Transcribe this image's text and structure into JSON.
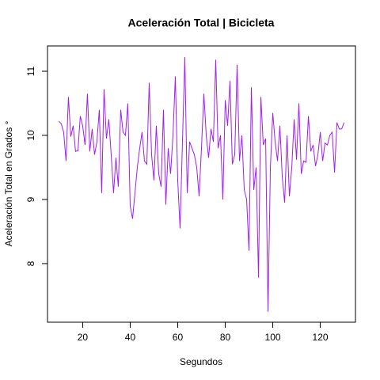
{
  "chart_data": {
    "type": "line",
    "title": "Aceleración Total | Bicicleta",
    "x_label": "Segundos",
    "y_label": "Aceleración Total en Grados °",
    "x": [
      10,
      11,
      12,
      13,
      14,
      15,
      16,
      17,
      18,
      19,
      20,
      21,
      22,
      23,
      24,
      25,
      26,
      27,
      28,
      29,
      30,
      31,
      32,
      33,
      34,
      35,
      36,
      37,
      38,
      39,
      40,
      41,
      42,
      43,
      44,
      45,
      46,
      47,
      48,
      49,
      50,
      51,
      52,
      53,
      54,
      55,
      56,
      57,
      58,
      59,
      60,
      61,
      62,
      63,
      64,
      65,
      66,
      67,
      68,
      69,
      70,
      71,
      72,
      73,
      74,
      75,
      76,
      77,
      78,
      79,
      80,
      81,
      82,
      83,
      84,
      85,
      86,
      87,
      88,
      89,
      90,
      91,
      92,
      93,
      94,
      95,
      96,
      97,
      98,
      99,
      100,
      101,
      102,
      103,
      104,
      105,
      106,
      107,
      108,
      109,
      110,
      111,
      112,
      113,
      114,
      115,
      116,
      117,
      118,
      119,
      120,
      121,
      122,
      123,
      124,
      125,
      126,
      127,
      128,
      129,
      130
    ],
    "series": [
      {
        "name": "Aceleración Total",
        "color": "#a020f0",
        "values": [
          10.22,
          10.18,
          10.05,
          9.6,
          10.6,
          9.98,
          10.15,
          9.75,
          9.76,
          10.3,
          10.15,
          9.85,
          10.65,
          9.75,
          10.1,
          9.7,
          9.9,
          10.4,
          9.1,
          10.72,
          9.95,
          10.25,
          9.7,
          9.1,
          9.65,
          9.2,
          10.4,
          10.05,
          10.0,
          10.5,
          8.9,
          8.7,
          9.1,
          9.5,
          9.8,
          10.05,
          9.6,
          9.55,
          10.82,
          9.7,
          9.3,
          10.15,
          9.4,
          9.2,
          10.4,
          8.92,
          9.8,
          9.4,
          10.0,
          10.92,
          9.3,
          8.55,
          9.9,
          11.22,
          9.1,
          9.9,
          9.8,
          9.7,
          9.5,
          9.05,
          9.8,
          10.65,
          10.0,
          9.65,
          10.1,
          9.9,
          11.18,
          9.8,
          10.0,
          9.0,
          10.55,
          10.15,
          10.85,
          9.55,
          9.7,
          11.1,
          9.6,
          10.0,
          9.15,
          9.0,
          8.2,
          10.75,
          9.15,
          9.5,
          7.78,
          10.6,
          9.85,
          9.95,
          7.25,
          9.5,
          10.35,
          9.9,
          9.6,
          10.15,
          9.35,
          8.95,
          10.0,
          9.05,
          9.5,
          10.25,
          9.62,
          10.5,
          9.4,
          9.6,
          9.58,
          10.3,
          9.75,
          9.85,
          9.52,
          9.7,
          10.05,
          9.6,
          9.88,
          9.85,
          10.0,
          10.05,
          9.42,
          10.2,
          10.1,
          10.1,
          10.2
        ]
      }
    ],
    "xlim": [
      5.2,
      134.8
    ],
    "ylim": [
      7.086,
      11.395
    ],
    "xticks": [
      20,
      40,
      60,
      80,
      100,
      120
    ],
    "yticks": [
      8,
      9,
      10,
      11
    ]
  }
}
